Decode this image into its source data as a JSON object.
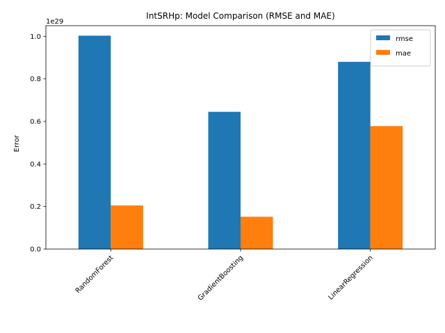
{
  "chart_data": {
    "type": "bar",
    "title": "IntSRHp: Model Comparison (RMSE and MAE)",
    "xlabel": "",
    "ylabel": "Error",
    "y_offset_label": "1e29",
    "categories": [
      "RandomForest",
      "GradientBoosting",
      "LinearRegression"
    ],
    "series": [
      {
        "name": "rmse",
        "color": "#1f77b4",
        "values": [
          1.003,
          0.645,
          0.88
        ]
      },
      {
        "name": "mae",
        "color": "#ff7f0e",
        "values": [
          0.205,
          0.152,
          0.578
        ]
      }
    ],
    "ylim": [
      0,
      1.05
    ],
    "yticks": [
      "0.0",
      "0.2",
      "0.4",
      "0.6",
      "0.8",
      "1.0"
    ],
    "ytick_values": [
      0,
      0.2,
      0.4,
      0.6,
      0.8,
      1.0
    ],
    "grid": false,
    "legend_position": "top-right",
    "xtick_rotation_deg": 45
  }
}
